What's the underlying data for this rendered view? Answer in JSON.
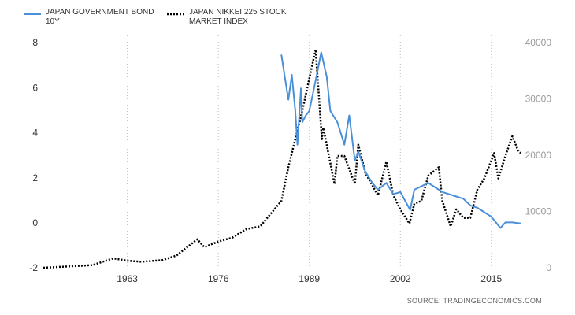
{
  "chart_data": {
    "type": "line",
    "source": "SOURCE:  TRADINGECONOMICS.COM",
    "xlim": [
      1951,
      2019.3
    ],
    "xticks": [
      1963,
      1976,
      1989,
      2002,
      2015
    ],
    "ylim": [
      -2,
      8
    ],
    "yticks": [
      -2,
      0,
      2,
      4,
      6,
      8
    ],
    "y2lim": [
      0,
      40000
    ],
    "y2ticks": [
      0,
      10000,
      20000,
      30000,
      40000
    ],
    "grid": "x",
    "series": [
      {
        "name": "JAPAN GOVERNMENT BOND 10Y",
        "color": "#4a90d9",
        "style": "solid",
        "x": [
          1985,
          1985.5,
          1986,
          1986.5,
          1987,
          1987.3,
          1987.8,
          1988,
          1988.5,
          1989,
          1990,
          1990.7,
          1991.5,
          1992,
          1993,
          1994,
          1994.7,
          1995.5,
          1996,
          1997,
          1998,
          1998.8,
          2000,
          2001,
          2002,
          2003.4,
          2004,
          2006,
          2007,
          2008,
          2010,
          2011,
          2012,
          2013,
          2014,
          2015,
          2016.3,
          2017,
          2018,
          2019.2
        ],
        "values": [
          7.5,
          6.5,
          5.5,
          6.6,
          5.0,
          3.5,
          6.0,
          4.5,
          4.8,
          5.0,
          6.5,
          7.6,
          6.5,
          5.0,
          4.5,
          3.5,
          4.8,
          2.8,
          3.2,
          2.3,
          1.8,
          1.5,
          1.8,
          1.3,
          1.4,
          0.6,
          1.5,
          1.8,
          1.6,
          1.4,
          1.2,
          1.1,
          0.8,
          0.7,
          0.5,
          0.3,
          -0.2,
          0.05,
          0.05,
          0.0
        ]
      },
      {
        "name": "JAPAN NIKKEI 225 STOCK MARKET INDEX",
        "color": "#000000",
        "style": "dotted",
        "axis": "y2",
        "x": [
          1951,
          1955,
          1958,
          1961,
          1963,
          1965,
          1968,
          1970,
          1973,
          1974,
          1976,
          1978,
          1980,
          1982,
          1983,
          1985,
          1986,
          1987,
          1988,
          1989.9,
          1990.8,
          1991,
          1992.6,
          1993,
          1994,
          1995.5,
          1996,
          1997,
          1998.8,
          2000,
          2001,
          2002,
          2003.3,
          2004,
          2005,
          2006,
          2007.5,
          2008,
          2009.2,
          2010,
          2011,
          2012,
          2013,
          2014,
          2015.4,
          2016,
          2017,
          2018,
          2018.8,
          2019.2
        ],
        "values": [
          140,
          400,
          600,
          1800,
          1400,
          1200,
          1500,
          2300,
          5200,
          3800,
          4800,
          5500,
          7000,
          7500,
          9000,
          12000,
          18000,
          23000,
          28000,
          38900,
          23000,
          25000,
          15000,
          20000,
          20000,
          15000,
          22000,
          17000,
          13000,
          19000,
          13000,
          10500,
          8000,
          11500,
          12000,
          16500,
          18000,
          12000,
          7500,
          10500,
          9000,
          9000,
          14000,
          16000,
          20500,
          16000,
          20000,
          23500,
          21000,
          20500
        ]
      }
    ]
  }
}
